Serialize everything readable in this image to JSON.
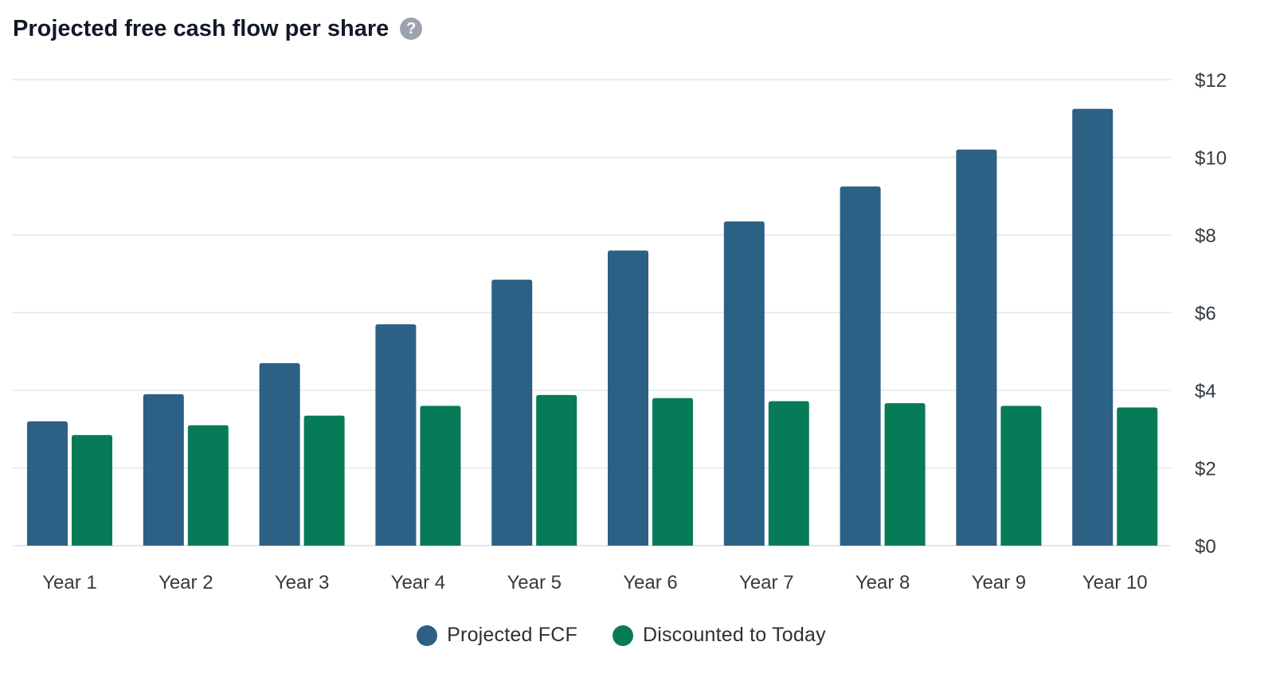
{
  "header": {
    "title": "Projected free cash flow per share",
    "help_icon": "question-mark-icon",
    "help_glyph": "?"
  },
  "colors": {
    "projected": "#2c6085",
    "discounted": "#077b58",
    "grid": "#e3e5e8",
    "tick_text": "#343a40"
  },
  "chart_data": {
    "type": "bar",
    "title": "Projected free cash flow per share",
    "categories": [
      "Year 1",
      "Year 2",
      "Year 3",
      "Year 4",
      "Year 5",
      "Year 6",
      "Year 7",
      "Year 8",
      "Year 9",
      "Year 10"
    ],
    "series": [
      {
        "name": "Projected FCF",
        "color": "#2c6085",
        "values": [
          3.2,
          3.9,
          4.7,
          5.7,
          6.85,
          7.6,
          8.35,
          9.25,
          10.2,
          11.25
        ]
      },
      {
        "name": "Discounted to Today",
        "color": "#077b58",
        "values": [
          2.85,
          3.1,
          3.35,
          3.6,
          3.88,
          3.8,
          3.72,
          3.67,
          3.6,
          3.56
        ]
      }
    ],
    "y_ticks": [
      "$0",
      "$2",
      "$4",
      "$6",
      "$8",
      "$10",
      "$12"
    ],
    "y_tick_values": [
      0,
      2,
      4,
      6,
      8,
      10,
      12
    ],
    "ylim": [
      0,
      12
    ],
    "y_axis_side": "right",
    "grid": true,
    "legend_position": "bottom-center"
  },
  "legend": {
    "items": [
      {
        "label": "Projected FCF",
        "color": "#2c6085"
      },
      {
        "label": "Discounted to Today",
        "color": "#077b58"
      }
    ]
  }
}
